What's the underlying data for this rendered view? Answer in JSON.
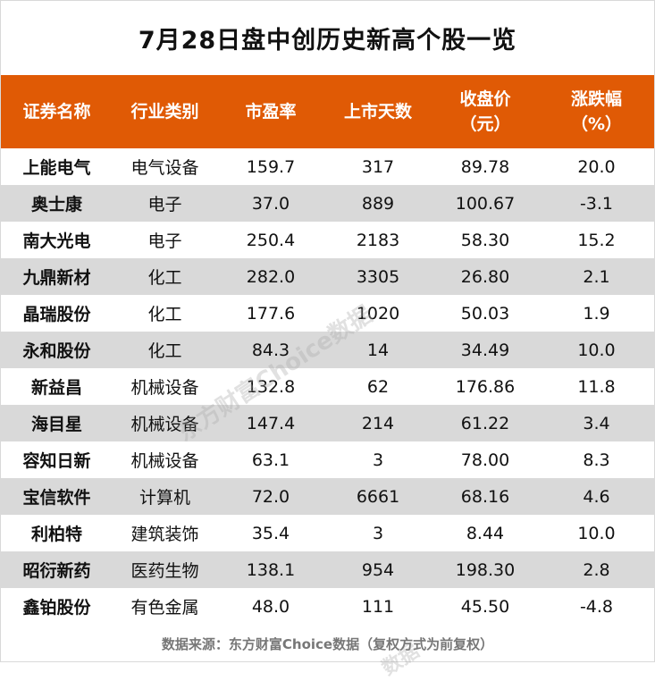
{
  "title": "7月28日盘中创历史新高个股一览",
  "columns": [
    {
      "line1": "证券名称",
      "line2": ""
    },
    {
      "line1": "行业类别",
      "line2": ""
    },
    {
      "line1": "市盈率",
      "line2": ""
    },
    {
      "line1": "上市天数",
      "line2": ""
    },
    {
      "line1": "收盘价",
      "line2": "（元）"
    },
    {
      "line1": "涨跌幅",
      "line2": "（%）"
    }
  ],
  "rows": [
    [
      "上能电气",
      "电气设备",
      "159.7",
      "317",
      "89.78",
      "20.0"
    ],
    [
      "奥士康",
      "电子",
      "37.0",
      "889",
      "100.67",
      "-3.1"
    ],
    [
      "南大光电",
      "电子",
      "250.4",
      "2183",
      "58.30",
      "15.2"
    ],
    [
      "九鼎新材",
      "化工",
      "282.0",
      "3305",
      "26.80",
      "2.1"
    ],
    [
      "晶瑞股份",
      "化工",
      "177.6",
      "1020",
      "50.03",
      "1.9"
    ],
    [
      "永和股份",
      "化工",
      "84.3",
      "14",
      "34.49",
      "10.0"
    ],
    [
      "新益昌",
      "机械设备",
      "132.8",
      "62",
      "176.86",
      "11.8"
    ],
    [
      "海目星",
      "机械设备",
      "147.4",
      "214",
      "61.22",
      "3.4"
    ],
    [
      "容知日新",
      "机械设备",
      "63.1",
      "3",
      "78.00",
      "8.3"
    ],
    [
      "宝信软件",
      "计算机",
      "72.0",
      "6661",
      "68.16",
      "4.6"
    ],
    [
      "利柏特",
      "建筑装饰",
      "35.4",
      "3",
      "8.44",
      "10.0"
    ],
    [
      "昭衍新药",
      "医药生物",
      "138.1",
      "954",
      "198.30",
      "2.8"
    ],
    [
      "鑫铂股份",
      "有色金属",
      "48.0",
      "111",
      "45.50",
      "-4.8"
    ]
  ],
  "source": "数据来源：东方财富Choice数据（复权方式为前复权）",
  "watermark": "东方财富Choice数据",
  "watermark_small": "数据",
  "colors": {
    "header_bg": "#e05a05",
    "alt_row": "#d9d9d9"
  }
}
